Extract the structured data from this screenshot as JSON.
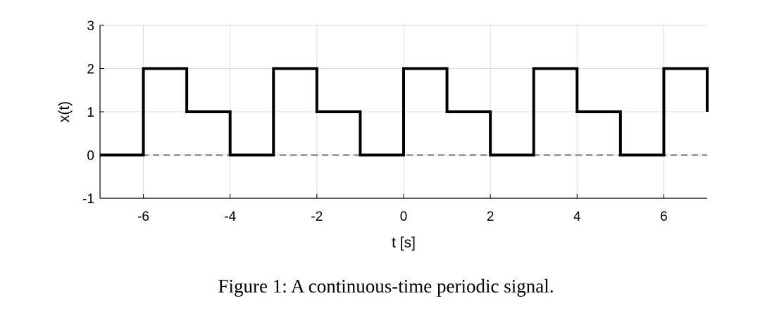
{
  "caption": "Figure 1: A continuous-time periodic signal.",
  "chart_data": {
    "type": "line",
    "xlabel": "t [s]",
    "ylabel": "x(t)",
    "xlim": [
      -7,
      7
    ],
    "ylim": [
      -1,
      3
    ],
    "xticks": [
      -6,
      -4,
      -2,
      0,
      2,
      4,
      6
    ],
    "yticks": [
      -1,
      0,
      1,
      2,
      3
    ],
    "grid": true,
    "series": [
      {
        "color": "#000000",
        "style": "solid",
        "x": [
          -7,
          -6,
          -6,
          -5,
          -5,
          -4,
          -4,
          -3,
          -3,
          -2,
          -2,
          -1,
          -1,
          0,
          0,
          1,
          1,
          2,
          2,
          3,
          3,
          4,
          4,
          5,
          5,
          6,
          6,
          7,
          7
        ],
        "y": [
          0,
          0,
          2,
          2,
          1,
          1,
          0,
          0,
          2,
          2,
          1,
          1,
          0,
          0,
          2,
          2,
          1,
          1,
          0,
          0,
          2,
          2,
          1,
          1,
          0,
          0,
          2,
          2,
          1
        ]
      },
      {
        "color": "#000000",
        "style": "dashed",
        "x": [
          -7,
          7
        ],
        "y": [
          0,
          0
        ]
      }
    ]
  }
}
